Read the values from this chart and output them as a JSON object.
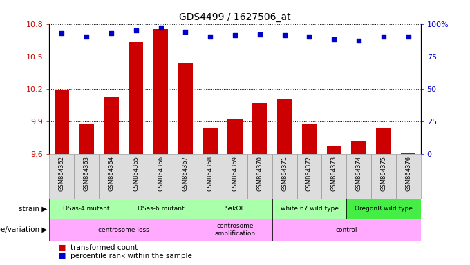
{
  "title": "GDS4499 / 1627506_at",
  "samples": [
    "GSM864362",
    "GSM864363",
    "GSM864364",
    "GSM864365",
    "GSM864366",
    "GSM864367",
    "GSM864368",
    "GSM864369",
    "GSM864370",
    "GSM864371",
    "GSM864372",
    "GSM864373",
    "GSM864374",
    "GSM864375",
    "GSM864376"
  ],
  "bar_values": [
    10.19,
    9.88,
    10.13,
    10.63,
    10.75,
    10.44,
    9.84,
    9.92,
    10.07,
    10.1,
    9.88,
    9.67,
    9.72,
    9.84,
    9.61
  ],
  "dot_values": [
    93,
    90,
    93,
    95,
    97,
    94,
    90,
    91,
    92,
    91,
    90,
    88,
    87,
    90,
    90
  ],
  "ymin": 9.6,
  "ymax": 10.8,
  "y2min": 0,
  "y2max": 100,
  "yticks": [
    9.6,
    9.9,
    10.2,
    10.5,
    10.8
  ],
  "ytick_labels": [
    "9.6",
    "9.9",
    "10.2",
    "10.5",
    "10.8"
  ],
  "y2ticks": [
    0,
    25,
    50,
    75,
    100
  ],
  "y2tick_labels": [
    "0",
    "25",
    "50",
    "75",
    "100%"
  ],
  "bar_color": "#cc0000",
  "dot_color": "#0000cc",
  "strain_groups": [
    {
      "text": "DSas-4 mutant",
      "start": 0,
      "end": 2,
      "color": "#aaffaa"
    },
    {
      "text": "DSas-6 mutant",
      "start": 3,
      "end": 5,
      "color": "#aaffaa"
    },
    {
      "text": "SakOE",
      "start": 6,
      "end": 8,
      "color": "#aaffaa"
    },
    {
      "text": "white 67 wild type",
      "start": 9,
      "end": 11,
      "color": "#aaffaa"
    },
    {
      "text": "OregonR wild type",
      "start": 12,
      "end": 14,
      "color": "#44ee44"
    }
  ],
  "genotype_groups": [
    {
      "text": "centrosome loss",
      "start": 0,
      "end": 5,
      "color": "#ffaaff"
    },
    {
      "text": "centrosome\namplification",
      "start": 6,
      "end": 8,
      "color": "#ffaaff"
    },
    {
      "text": "control",
      "start": 9,
      "end": 14,
      "color": "#ffaaff"
    }
  ],
  "sample_box_color": "#dddddd",
  "sample_box_edge": "#888888",
  "legend_red": "transformed count",
  "legend_blue": "percentile rank within the sample",
  "strain_row_label": "strain",
  "genotype_row_label": "genotype/variation",
  "grid_color": "black",
  "grid_linestyle": "dotted",
  "grid_linewidth": 0.7
}
